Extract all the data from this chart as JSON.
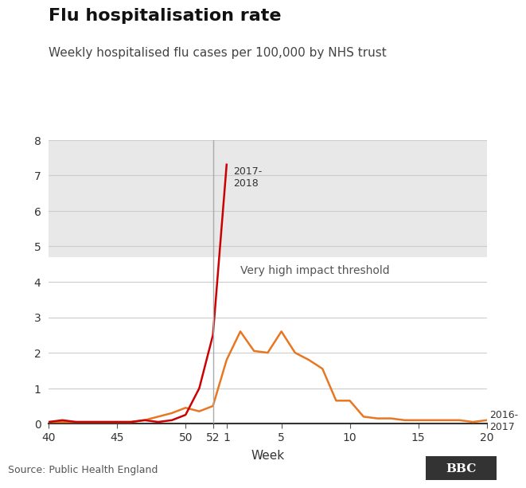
{
  "title": "Flu hospitalisation rate",
  "subtitle": "Weekly hospitalised flu cases per 100,000 by NHS trust",
  "xlabel": "Week",
  "source": "Source: Public Health England",
  "threshold_label": "Very high impact threshold",
  "threshold_value": 4.7,
  "background_color": "#ffffff",
  "plot_bg_color": "#e8e8e8",
  "series_2017_label": "2017-\n2018",
  "series_2016_label": "2016-\n2017",
  "series_2017_color": "#cc0000",
  "series_2016_color": "#e87722",
  "ylim": [
    0,
    8
  ],
  "yticks": [
    0,
    1,
    2,
    3,
    4,
    5,
    6,
    7,
    8
  ],
  "series_2016_x": [
    40,
    41,
    42,
    43,
    44,
    45,
    46,
    47,
    48,
    49,
    50,
    51,
    52,
    1,
    2,
    3,
    4,
    5,
    6,
    7,
    8,
    9,
    10,
    11,
    12,
    13,
    14,
    15,
    16,
    17,
    18,
    19,
    20
  ],
  "series_2016_y": [
    0.05,
    0.05,
    0.05,
    0.05,
    0.05,
    0.05,
    0.05,
    0.1,
    0.2,
    0.3,
    0.45,
    0.35,
    0.5,
    1.8,
    2.6,
    2.05,
    2.0,
    2.6,
    2.0,
    1.8,
    1.55,
    0.65,
    0.65,
    0.2,
    0.15,
    0.15,
    0.1,
    0.1,
    0.1,
    0.1,
    0.1,
    0.05,
    0.1
  ],
  "series_2017_x": [
    40,
    41,
    42,
    43,
    44,
    45,
    46,
    47,
    48,
    49,
    50,
    51,
    52,
    1
  ],
  "series_2017_y": [
    0.05,
    0.1,
    0.05,
    0.05,
    0.05,
    0.05,
    0.05,
    0.1,
    0.05,
    0.1,
    0.25,
    1.0,
    2.5,
    7.3
  ],
  "xtick_vals": [
    40,
    45,
    50,
    52,
    1,
    5,
    10,
    15,
    20
  ],
  "xtick_labels": [
    "40",
    "45",
    "50",
    "52",
    "1",
    "5",
    "10",
    "15",
    "20"
  ]
}
